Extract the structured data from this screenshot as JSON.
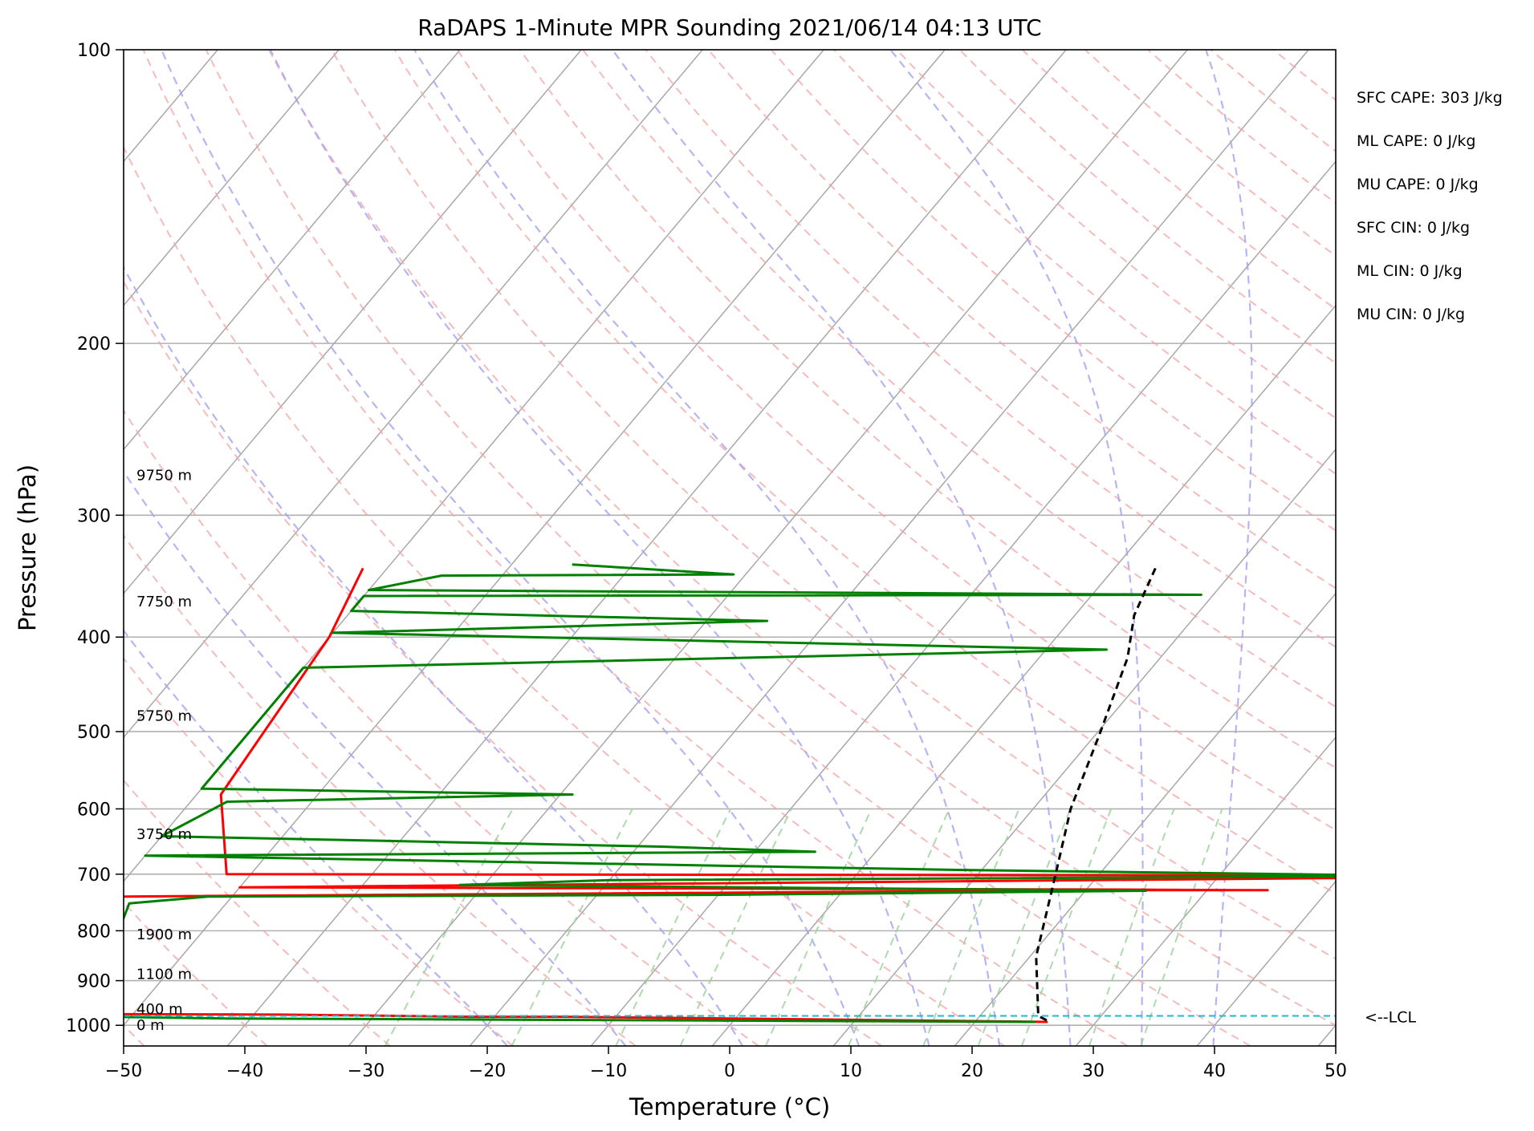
{
  "chart_data": {
    "type": "line",
    "title": "RaDAPS 1-Minute MPR Sounding 2021/06/14 04:13 UTC",
    "xlabel": "Temperature (°C)",
    "ylabel": "Pressure (hPa)",
    "xlim": [
      -50,
      50
    ],
    "ylim": [
      1050,
      100
    ],
    "yscale": "log",
    "skew": true,
    "grid": true,
    "x_ticks": [
      -50,
      -40,
      -30,
      -20,
      -10,
      0,
      10,
      20,
      30,
      40,
      50
    ],
    "x_tick_labels": [
      "−50",
      "−40",
      "−30",
      "−20",
      "−10",
      "0",
      "10",
      "20",
      "30",
      "40",
      "50"
    ],
    "y_ticks": [
      1000,
      900,
      800,
      700,
      600,
      500,
      400,
      300,
      200,
      100
    ],
    "y_tick_labels": [
      "1000",
      "900",
      "800",
      "700",
      "600",
      "500",
      "400",
      "300",
      "200",
      "100"
    ],
    "height_labels": [
      {
        "p": 1000,
        "text": "0 m"
      },
      {
        "p": 962,
        "text": "400 m"
      },
      {
        "p": 886,
        "text": "1100 m"
      },
      {
        "p": 807,
        "text": "1900 m"
      },
      {
        "p": 637,
        "text": "3750 m"
      },
      {
        "p": 482,
        "text": "5750 m"
      },
      {
        "p": 368,
        "text": "7750 m"
      },
      {
        "p": 273,
        "text": "9750 m"
      }
    ],
    "indices": [
      "SFC CAPE: 303 J/kg",
      "ML CAPE: 0 J/kg",
      "MU CAPE: 0 J/kg",
      "SFC CIN: 0 J/kg",
      "ML CIN: 0 J/kg",
      "MU CIN: 0 J/kg"
    ],
    "lcl": {
      "pressure": 978,
      "label": "<--LCL"
    },
    "series": [
      {
        "color": "#ff0000",
        "style": "solid",
        "points": [
          [
            26,
            992
          ],
          [
            -14,
            980
          ],
          [
            -22,
            980
          ],
          [
            -28,
            978
          ],
          [
            -32,
            977
          ],
          [
            -38,
            975
          ],
          [
            -52,
            974
          ],
          [
            -54,
            962
          ],
          [
            -56,
            886
          ],
          [
            -58,
            807
          ],
          [
            -60,
            738
          ],
          [
            22,
            727
          ],
          [
            35,
            727
          ],
          [
            24,
            726
          ],
          [
            -50,
            722
          ],
          [
            60,
            703
          ],
          [
            65,
            703
          ],
          [
            -52,
            700
          ],
          [
            -58,
            580
          ],
          [
            -60,
            400
          ],
          [
            -62,
            340
          ]
        ]
      },
      {
        "color": "#008000",
        "style": "solid",
        "points": [
          [
            25,
            992
          ],
          [
            -42,
            984
          ],
          [
            -52,
            980
          ],
          [
            -54,
            970
          ],
          [
            -56,
            850
          ],
          [
            -58,
            750
          ],
          [
            -52,
            738
          ],
          [
            -10,
            735
          ],
          [
            25,
            728
          ],
          [
            -32,
            718
          ],
          [
            -20,
            710
          ],
          [
            48,
            703
          ],
          [
            8,
            693
          ],
          [
            -60,
            670
          ],
          [
            -5,
            664
          ],
          [
            -18,
            656
          ],
          [
            -60,
            640
          ],
          [
            -57,
            590
          ],
          [
            -29,
            580
          ],
          [
            -60,
            572
          ],
          [
            -60,
            430
          ],
          [
            5,
            412
          ],
          [
            -60,
            396
          ],
          [
            -25,
            385
          ],
          [
            -60,
            376
          ],
          [
            -60,
            363
          ],
          [
            9,
            362
          ],
          [
            -60,
            358
          ],
          [
            -55,
            346
          ],
          [
            -31,
            345
          ],
          [
            -45,
            337
          ]
        ]
      },
      {
        "color": "#000000",
        "style": "dashed",
        "points": [
          [
            25.8,
            988
          ],
          [
            24.8,
            978
          ],
          [
            20.5,
            850
          ],
          [
            16.4,
            700
          ],
          [
            13.1,
            600
          ],
          [
            10.2,
            500
          ],
          [
            7.3,
            420
          ],
          [
            4.9,
            380
          ],
          [
            3.3,
            338
          ]
        ]
      }
    ]
  }
}
